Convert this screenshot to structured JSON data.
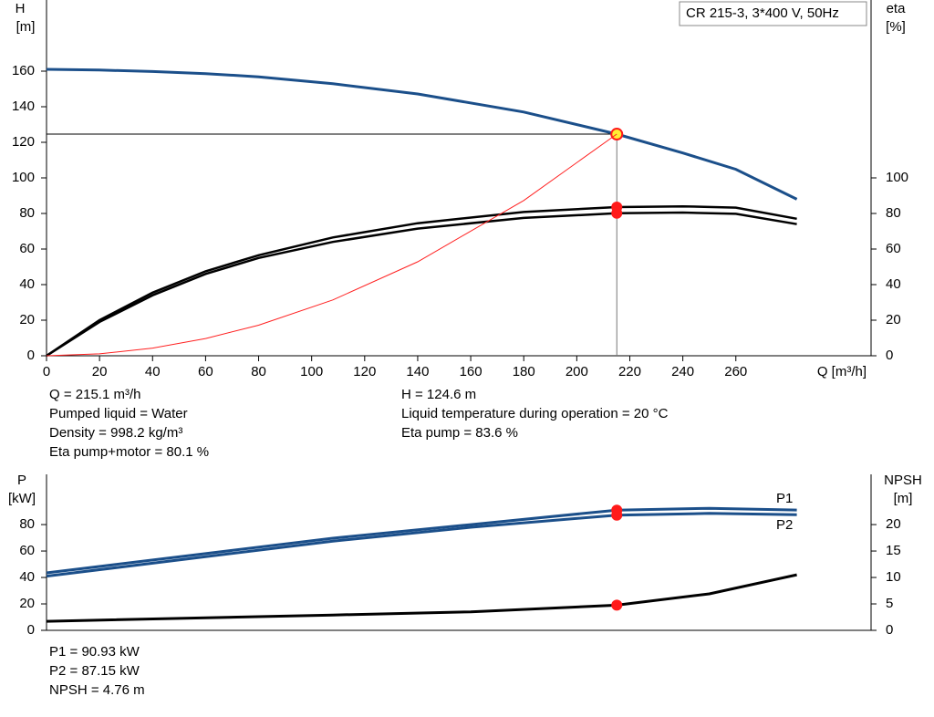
{
  "chart_data": [
    {
      "type": "line",
      "title": "CR 215-3, 3*400 V, 50Hz",
      "ylabel": "H",
      "yunit": "[m]",
      "y2label": "eta",
      "y2unit": "[%]",
      "xlabel": "Q [m³/h]",
      "xlim": [
        0,
        311
      ],
      "xticks": [
        0,
        20,
        40,
        60,
        80,
        100,
        120,
        140,
        160,
        180,
        200,
        220,
        240,
        260
      ],
      "ylim": [
        0,
        200
      ],
      "yticks": [
        0,
        20,
        40,
        60,
        80,
        100,
        120,
        140,
        160
      ],
      "y2lim": [
        0,
        200
      ],
      "y2ticks": [
        0,
        20,
        40,
        60,
        80,
        100
      ],
      "x": [
        0,
        20,
        40,
        60,
        80,
        108,
        140,
        180,
        215.1,
        240,
        260,
        283
      ],
      "series": [
        {
          "color": "#1b4f8a",
          "values": [
            161,
            160.6,
            159.8,
            158.6,
            156.8,
            152.9,
            147.2,
            137,
            124.6,
            114,
            104.8,
            88
          ]
        },
        {
          "color": "#000000",
          "axis": "y2",
          "values": [
            0,
            20,
            35.5,
            47.5,
            56.5,
            66.5,
            74.5,
            80.8,
            83.6,
            84,
            83.3,
            77
          ]
        },
        {
          "color": "#000000",
          "axis": "y2",
          "values": [
            0,
            19,
            34,
            46,
            55,
            64,
            71.5,
            77.5,
            80.1,
            80.5,
            79.8,
            74
          ]
        },
        {
          "color": "#ff2020",
          "values": [
            0,
            1.1,
            4.3,
            9.7,
            17.2,
            31.4,
            52.8,
            87.3,
            124.6,
            null,
            null,
            null
          ]
        }
      ],
      "notes": {
        "left": [
          "Q = 215.1 m³/h",
          "Pumped liquid = Water",
          "Density = 998.2 kg/m³",
          "Eta pump+motor = 80.1 %"
        ],
        "right": [
          "H = 124.6 m",
          "Liquid temperature during operation = 20 °C",
          "Eta pump = 83.6 %"
        ]
      }
    },
    {
      "type": "line",
      "ylabel": "P",
      "yunit": "[kW]",
      "y2label": "NPSH",
      "y2unit": "[m]",
      "xlim": [
        0,
        311
      ],
      "ylim": [
        0,
        118
      ],
      "yticks": [
        0,
        20,
        40,
        60,
        80
      ],
      "y2lim": [
        0,
        29.5
      ],
      "y2ticks": [
        0,
        5,
        10,
        15,
        20
      ],
      "x": [
        0,
        108,
        160,
        215.1,
        250,
        283
      ],
      "series": [
        {
          "name": "P1",
          "color": "#1b4f8a",
          "values": [
            43.5,
            69.7,
            80,
            90.93,
            92.3,
            91
          ]
        },
        {
          "name": "P2",
          "color": "#1b4f8a",
          "values": [
            41,
            67.5,
            78,
            87.15,
            88.5,
            87.5
          ]
        },
        {
          "color": "#000000",
          "axis": "y2",
          "values": [
            1.7,
            2.9,
            3.5,
            4.76,
            6.9,
            10.5
          ]
        }
      ],
      "notes": {
        "left": [
          "P1 = 90.93 kW",
          "P2 = 87.15 kW",
          "NPSH = 4.76 m"
        ]
      }
    }
  ]
}
